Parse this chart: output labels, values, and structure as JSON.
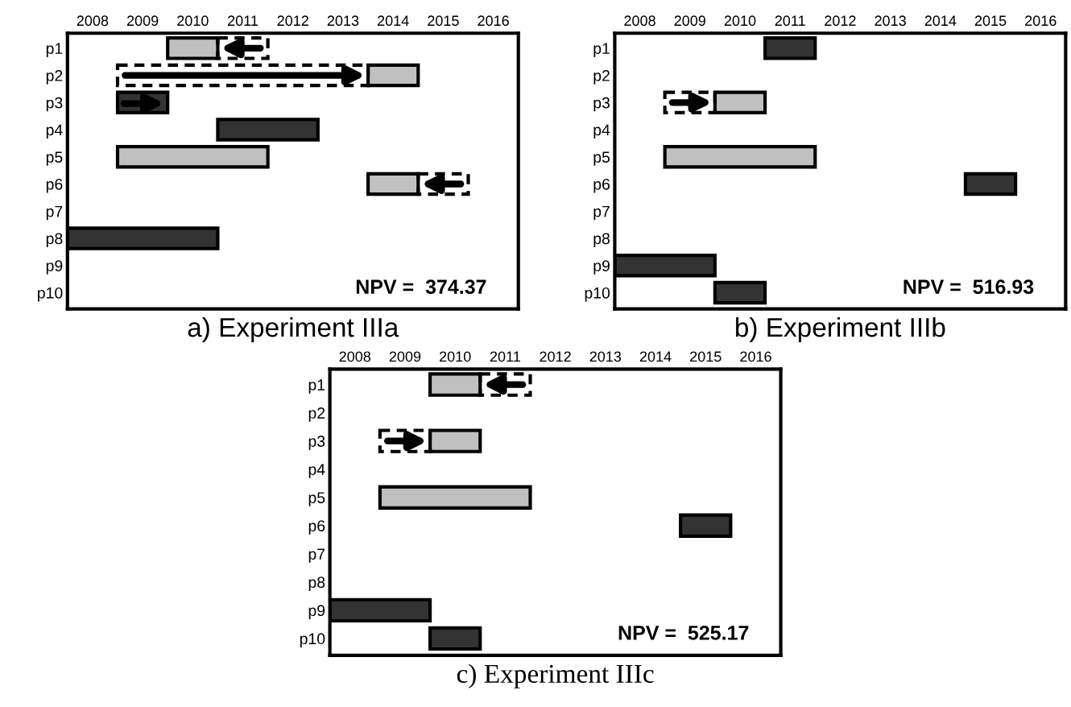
{
  "chart_data": [
    {
      "type": "bar",
      "orientation": "horizontal",
      "title": "a) Experiment IIIa",
      "categories": [
        "p1",
        "p2",
        "p3",
        "p4",
        "p5",
        "p6",
        "p7",
        "p8",
        "p9",
        "p10"
      ],
      "xlim": [
        2007.5,
        2016.5
      ],
      "xticks": [
        2008,
        2009,
        2010,
        2011,
        2012,
        2013,
        2014,
        2015,
        2016
      ],
      "grid": false,
      "annotations": [
        "NPV =  374.37"
      ],
      "series": [
        {
          "color": "#c0c0c0",
          "base": [
            2009.5,
            2013.5,
            null,
            null,
            2008.5,
            2013.5,
            null,
            null,
            null,
            null
          ],
          "values": [
            1,
            1,
            null,
            null,
            3,
            1,
            null,
            null,
            null,
            null
          ]
        },
        {
          "color": "#333333",
          "base": [
            null,
            null,
            2008.5,
            2010.5,
            null,
            null,
            null,
            2007.5,
            null,
            null
          ],
          "values": [
            null,
            null,
            1,
            2,
            null,
            null,
            null,
            3,
            null,
            null
          ]
        },
        {
          "color": "#000000",
          "line_style": "dashed",
          "base": [
            2010.5,
            2008.5,
            null,
            null,
            null,
            2014.5,
            null,
            null,
            null,
            null
          ],
          "values": [
            1,
            5,
            null,
            null,
            null,
            1,
            null,
            null,
            null,
            null
          ]
        }
      ]
    },
    {
      "type": "bar",
      "orientation": "horizontal",
      "title": "b) Experiment IIIb",
      "categories": [
        "p1",
        "p2",
        "p3",
        "p4",
        "p5",
        "p6",
        "p7",
        "p8",
        "p9",
        "p10"
      ],
      "xlim": [
        2007.5,
        2016.5
      ],
      "xticks": [
        2008,
        2009,
        2010,
        2011,
        2012,
        2013,
        2014,
        2015,
        2016
      ],
      "grid": false,
      "annotations": [
        "NPV =  516.93"
      ],
      "series": [
        {
          "color": "#c0c0c0",
          "base": [
            null,
            null,
            2009.5,
            null,
            2008.5,
            null,
            null,
            null,
            null,
            null
          ],
          "values": [
            null,
            null,
            1,
            null,
            3,
            null,
            null,
            null,
            null,
            null
          ]
        },
        {
          "color": "#333333",
          "base": [
            2010.5,
            null,
            null,
            null,
            null,
            2014.5,
            null,
            null,
            2007.5,
            2009.5
          ],
          "values": [
            1,
            null,
            null,
            null,
            null,
            1,
            null,
            null,
            2,
            1
          ]
        },
        {
          "color": "#000000",
          "line_style": "dashed",
          "base": [
            null,
            null,
            2008.5,
            null,
            null,
            null,
            null,
            null,
            null,
            null
          ],
          "values": [
            null,
            null,
            1,
            null,
            null,
            null,
            null,
            null,
            null,
            null
          ]
        }
      ]
    },
    {
      "type": "bar",
      "orientation": "horizontal",
      "title": "c) Experiment IIIc",
      "categories": [
        "p1",
        "p2",
        "p3",
        "p4",
        "p5",
        "p6",
        "p7",
        "p8",
        "p9",
        "p10"
      ],
      "xlim": [
        2007.5,
        2016.5
      ],
      "xticks": [
        2008,
        2009,
        2010,
        2011,
        2012,
        2013,
        2014,
        2015,
        2016
      ],
      "grid": false,
      "annotations": [
        "NPV =  525.17"
      ],
      "series": [
        {
          "color": "#c0c0c0",
          "base": [
            2009.5,
            null,
            2009.5,
            null,
            2008.5,
            null,
            null,
            null,
            null,
            null
          ],
          "values": [
            1,
            null,
            1,
            null,
            3,
            null,
            null,
            null,
            null,
            null
          ]
        },
        {
          "color": "#333333",
          "base": [
            null,
            null,
            null,
            null,
            null,
            2014.5,
            null,
            null,
            2007.5,
            2009.5
          ],
          "values": [
            null,
            null,
            null,
            null,
            null,
            1,
            null,
            null,
            2,
            1
          ]
        },
        {
          "color": "#000000",
          "line_style": "dashed",
          "base": [
            2010.5,
            null,
            2008.5,
            null,
            null,
            null,
            null,
            null,
            null,
            null
          ],
          "values": [
            1,
            null,
            1,
            null,
            null,
            null,
            null,
            null,
            null,
            null
          ]
        }
      ]
    }
  ]
}
